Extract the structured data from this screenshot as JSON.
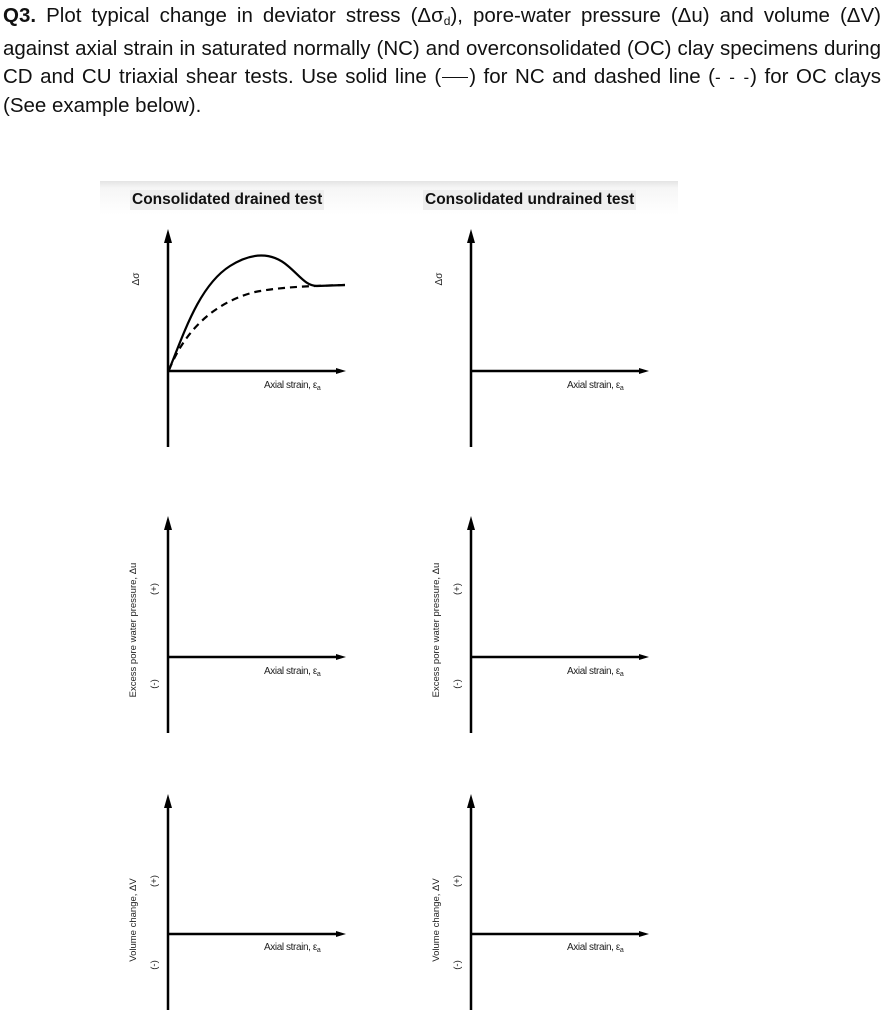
{
  "question": {
    "number": "Q3.",
    "text_before_sub": " Plot typical change in deviator stress (Δσ",
    "subscript": "d",
    "text_after_sub": "), pore-water pressure (Δu) and volume (ΔV) against axial strain in saturated normally (NC) and overconsolidated (OC) clay specimens during CD and CU triaxial shear tests. Use solid line (",
    "text_mid": ") for NC and dashed line (",
    "dashed_sample": "- - -",
    "text_end": ") for OC clays (See example below)."
  },
  "columns": [
    {
      "heading": "Consolidated drained test"
    },
    {
      "heading": "Consolidated undrained test"
    }
  ],
  "axes": {
    "x_label": "Axial strain, ε",
    "x_label_sub": "a",
    "stress_ylabel": "Δσ",
    "pore_ylabel": "Excess pore water pressure, Δu",
    "volume_ylabel": "Volume change, ΔV",
    "positive_sign": "(+)",
    "negative_sign": "(-)"
  },
  "example_curves": {
    "nc_line_style": "solid",
    "oc_line_style": "dashed"
  }
}
